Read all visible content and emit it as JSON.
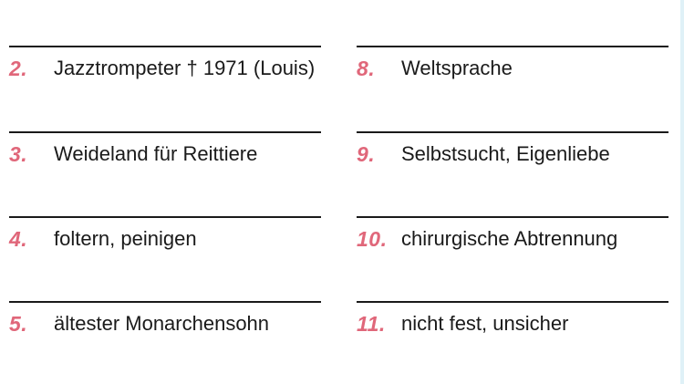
{
  "left_column": [
    {
      "number": "2.",
      "clue": "Jazztrompeter † 1971 (Louis)"
    },
    {
      "number": "3.",
      "clue": "Weideland für Reittiere"
    },
    {
      "number": "4.",
      "clue": "foltern, peinigen"
    },
    {
      "number": "5.",
      "clue": "ältester Monarchensohn"
    }
  ],
  "right_column": [
    {
      "number": "8.",
      "clue": "Weltsprache"
    },
    {
      "number": "9.",
      "clue": "Selbstsucht, Eigenliebe"
    },
    {
      "number": "10.",
      "clue": "chirurgische Abtrennung"
    },
    {
      "number": "11.",
      "clue": "nicht fest, unsicher"
    }
  ],
  "colors": {
    "number": "#e0677a",
    "text": "#1a1a1a",
    "line": "#1a1a1a",
    "edge": "#dff1f7"
  }
}
